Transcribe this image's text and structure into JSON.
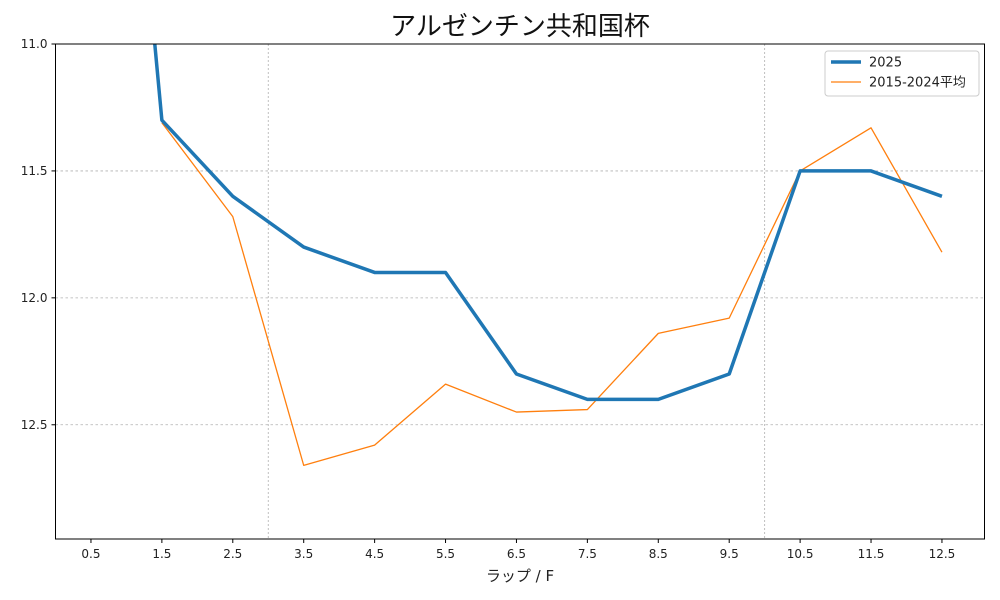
{
  "chart_data": {
    "type": "line",
    "title": "アルゼンチン共和国杯",
    "xlabel": "ラップ / F",
    "ylabel": "",
    "x_ticks": [
      "0.5",
      "1.5",
      "2.5",
      "3.5",
      "4.5",
      "5.5",
      "6.5",
      "7.5",
      "8.5",
      "9.5",
      "10.5",
      "11.5",
      "12.5"
    ],
    "y_ticks": [
      "11.0",
      "11.5",
      "12.0",
      "12.5"
    ],
    "xlim": [
      0.0,
      13.1
    ],
    "ylim": [
      12.95,
      11.0
    ],
    "y_inverted": true,
    "grid": true,
    "vertical_reference_lines_x": [
      3.0,
      10.0
    ],
    "legend_position": "top-right",
    "series": [
      {
        "name": "2025",
        "color": "#1f77b4",
        "points": [
          [
            1.4,
            11.0
          ],
          [
            1.5,
            11.3
          ],
          [
            2.5,
            11.6
          ],
          [
            3.5,
            11.8
          ],
          [
            4.5,
            11.9
          ],
          [
            5.5,
            11.9
          ],
          [
            6.5,
            12.3
          ],
          [
            7.5,
            12.4
          ],
          [
            8.5,
            12.4
          ],
          [
            9.5,
            12.3
          ],
          [
            10.5,
            11.5
          ],
          [
            11.5,
            11.5
          ],
          [
            12.5,
            11.6
          ]
        ]
      },
      {
        "name": "2015-2024平均",
        "color": "#ff7f0e",
        "points": [
          [
            1.5,
            11.31
          ],
          [
            2.5,
            11.68
          ],
          [
            3.5,
            12.66
          ],
          [
            4.5,
            12.58
          ],
          [
            5.5,
            12.34
          ],
          [
            6.5,
            12.45
          ],
          [
            7.5,
            12.44
          ],
          [
            8.5,
            12.14
          ],
          [
            9.5,
            12.08
          ],
          [
            10.5,
            11.5
          ],
          [
            11.5,
            11.33
          ],
          [
            12.5,
            11.82
          ]
        ]
      }
    ]
  }
}
